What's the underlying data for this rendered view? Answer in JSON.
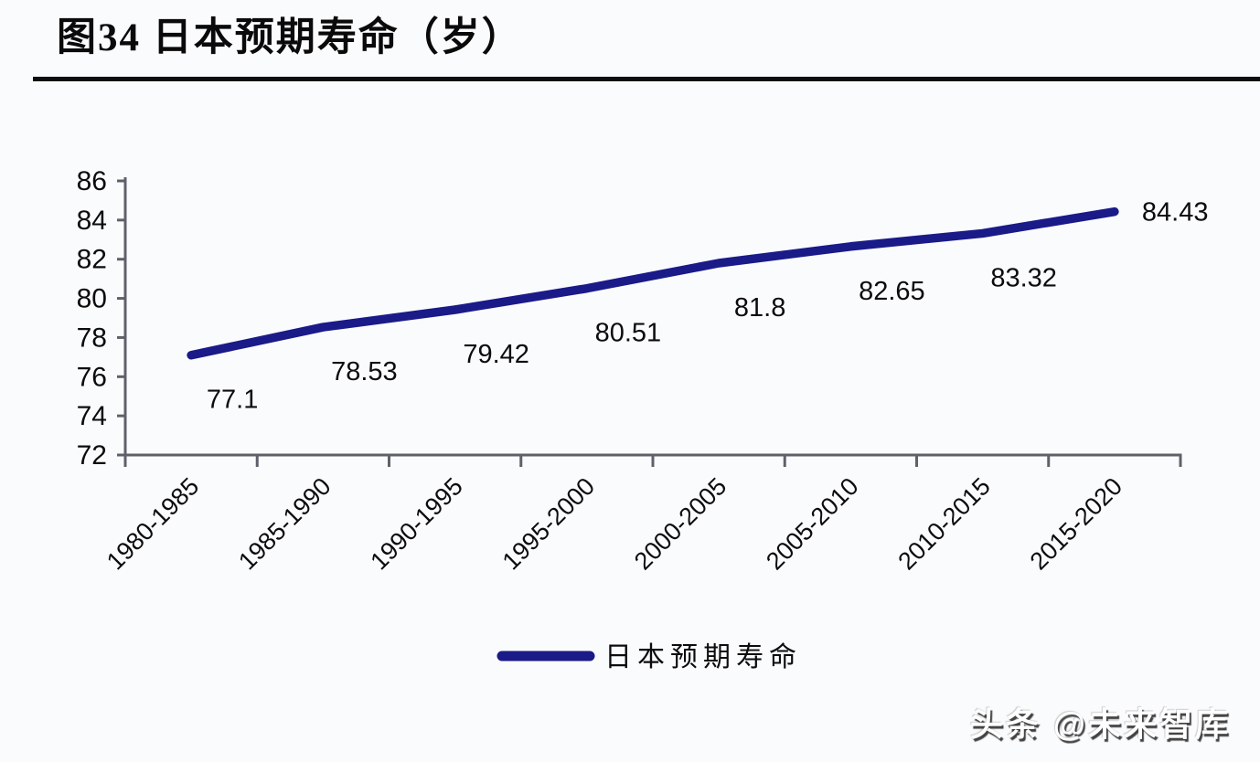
{
  "page": {
    "background_color": "#fafbfd"
  },
  "watermark": {
    "text": "头条 @未来智库"
  },
  "chart_data": {
    "type": "line",
    "title": "图34 日本预期寿命（岁）",
    "categories": [
      "1980-1985",
      "1985-1990",
      "1990-1995",
      "1995-2000",
      "2000-2005",
      "2005-2010",
      "2010-2015",
      "2015-2020"
    ],
    "series": [
      {
        "name": "日本预期寿命",
        "values": [
          77.1,
          78.53,
          79.42,
          80.51,
          81.8,
          82.65,
          83.32,
          84.43
        ]
      }
    ],
    "data_labels": [
      "77.1",
      "78.53",
      "79.42",
      "80.51",
      "81.8",
      "82.65",
      "83.32",
      "84.43"
    ],
    "xlabel": "",
    "ylabel": "",
    "ylim": [
      72,
      86
    ],
    "yticks": [
      72,
      74,
      76,
      78,
      80,
      82,
      84,
      86
    ],
    "grid": "off",
    "legend_position": "bottom",
    "line_color": "#1a1a88",
    "axis_color": "#60606a",
    "text_color": "#0c0c0c"
  }
}
